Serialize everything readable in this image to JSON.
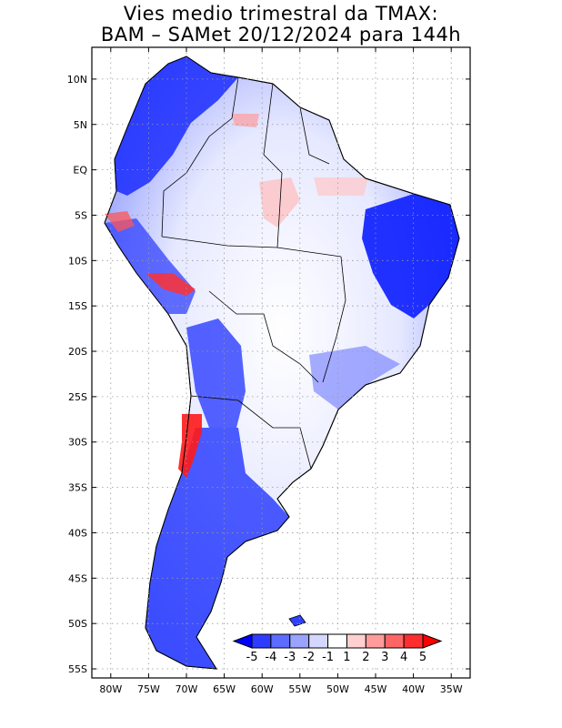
{
  "title": {
    "line1": "Vies medio trimestral da TMAX:",
    "line2": "BAM – SAMet 20/12/2024  para 144h"
  },
  "map": {
    "lat_labels": [
      "10N",
      "5N",
      "EQ",
      "5S",
      "10S",
      "15S",
      "20S",
      "25S",
      "30S",
      "35S",
      "40S",
      "45S",
      "50S",
      "55S"
    ],
    "lat_values": [
      10,
      5,
      0,
      -5,
      -10,
      -15,
      -20,
      -25,
      -30,
      -35,
      -40,
      -45,
      -50,
      -55
    ],
    "lon_labels": [
      "80W",
      "75W",
      "70W",
      "65W",
      "60W",
      "55W",
      "50W",
      "45W",
      "40W",
      "35W"
    ],
    "lon_values": [
      -80,
      -75,
      -70,
      -65,
      -60,
      -55,
      -50,
      -45,
      -40,
      -35
    ],
    "extent": {
      "lon_min": -82.5,
      "lon_max": -32.5,
      "lat_min": -56,
      "lat_max": 13.5
    },
    "gridlines": "dotted"
  },
  "colorbar": {
    "labels": [
      "-5",
      "-4",
      "-3",
      "-2",
      "-1",
      "1",
      "2",
      "3",
      "4",
      "5"
    ],
    "colors": [
      "#0000ff",
      "#2e3cff",
      "#5c6cff",
      "#9aa3ff",
      "#d4d8ff",
      "#ffffff",
      "#ffd0d0",
      "#ff9b9b",
      "#ff6565",
      "#ff2e2e",
      "#ff0000"
    ]
  }
}
